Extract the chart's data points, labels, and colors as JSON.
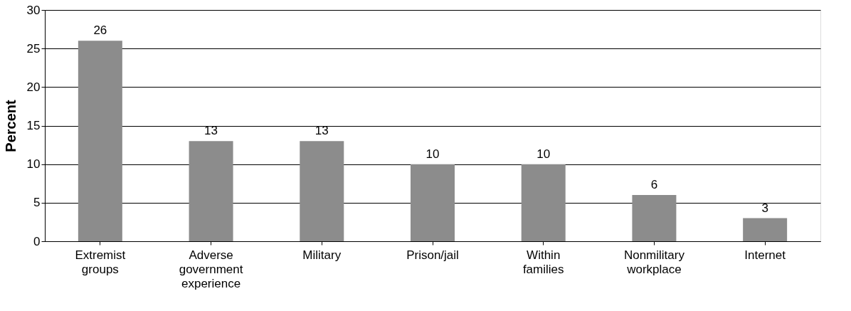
{
  "chart_data": {
    "type": "bar",
    "ylabel": "Percent",
    "categories": [
      "Extremist groups",
      "Adverse government experience",
      "Military",
      "Prison/jail",
      "Within families",
      "Nonmilitary workplace",
      "Internet"
    ],
    "values": [
      26,
      13,
      13,
      10,
      10,
      6,
      3
    ],
    "color": "#8c8c8c",
    "ylim": [
      0,
      30
    ],
    "yticks": [
      0,
      5,
      10,
      15,
      20,
      25,
      30
    ],
    "grid": "y",
    "data_labels": true
  }
}
